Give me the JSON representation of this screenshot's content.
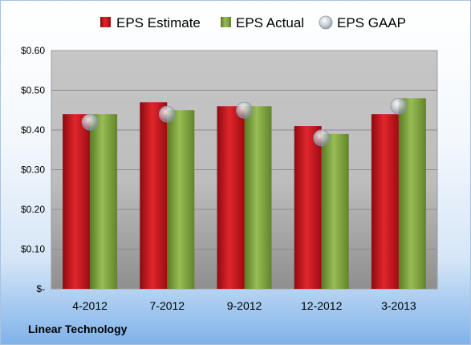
{
  "company": "Linear Technology",
  "chart_data": {
    "type": "bar",
    "categories": [
      "4-2012",
      "7-2012",
      "9-2012",
      "12-2012",
      "3-2013"
    ],
    "series": [
      {
        "name": "EPS Estimate",
        "type": "bar",
        "color": "#c8141c",
        "values": [
          0.44,
          0.47,
          0.46,
          0.41,
          0.44
        ]
      },
      {
        "name": "EPS Actual",
        "type": "bar",
        "color": "#7ea13b",
        "values": [
          0.44,
          0.45,
          0.46,
          0.39,
          0.48
        ]
      },
      {
        "name": "EPS GAAP",
        "type": "scatter",
        "color": "#b9c1cc",
        "values": [
          0.42,
          0.44,
          0.45,
          0.38,
          0.46
        ]
      }
    ],
    "yticks": [
      "$-",
      "$0.10",
      "$0.20",
      "$0.30",
      "$0.40",
      "$0.50",
      "$0.60"
    ],
    "ylim": [
      0,
      0.6
    ],
    "grid": true,
    "legend": "top"
  }
}
